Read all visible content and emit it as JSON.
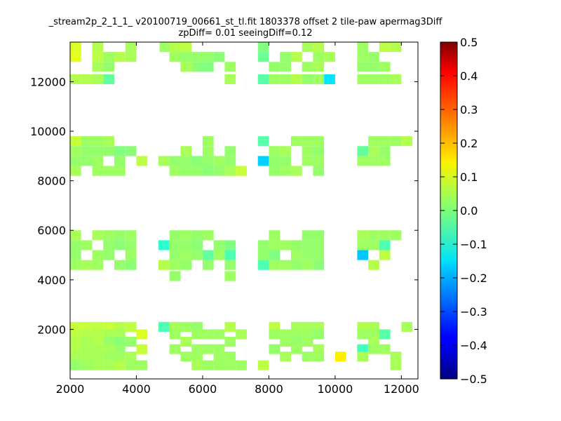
{
  "chart_data": {
    "type": "heatmap",
    "title": "_stream2p_2_1_1_ v20100719_00661_st_tl.fit 1803378 offset 2 tile-paw apermag3Diff",
    "subtitle": "zpDiff= 0.01 seeingDiff=0.12",
    "xlabel": "",
    "ylabel": "",
    "xlim": [
      2000,
      12500
    ],
    "ylim": [
      0,
      13600
    ],
    "x_ticks": [
      2000,
      4000,
      6000,
      8000,
      10000,
      12000
    ],
    "y_ticks": [
      2000,
      4000,
      6000,
      8000,
      10000,
      12000
    ],
    "x_tick_labels": [
      "2000",
      "4000",
      "6000",
      "8000",
      "10000",
      "12000"
    ],
    "y_tick_labels": [
      "2000",
      "4000",
      "6000",
      "8000",
      "10000",
      "12000"
    ],
    "colorbar": {
      "range": [
        -0.5,
        0.5
      ],
      "ticks": [
        0.5,
        0.4,
        0.3,
        0.2,
        0.1,
        0.0,
        -0.1,
        -0.2,
        -0.3,
        -0.4,
        -0.5
      ],
      "tick_labels": [
        "0.5",
        "0.4",
        "0.3",
        "0.2",
        "0.1",
        "0.0",
        "−0.1",
        "−0.2",
        "−0.3",
        "−0.4",
        "−0.5"
      ],
      "colormap": "jet"
    },
    "grid": false,
    "cell_width": 333,
    "cell_height": 400,
    "cells": [
      [
        2000,
        13200,
        0.09
      ],
      [
        2000,
        12800,
        0.1
      ],
      [
        2000,
        11900,
        0.05
      ],
      [
        2333,
        11900,
        0.05
      ],
      [
        2667,
        13200,
        0.05
      ],
      [
        2667,
        12800,
        0.06
      ],
      [
        2667,
        12400,
        0.04
      ],
      [
        2667,
        11900,
        0.04
      ],
      [
        3000,
        12800,
        0.03
      ],
      [
        3000,
        12400,
        0.02
      ],
      [
        3000,
        11900,
        -0.03
      ],
      [
        3333,
        12800,
        0.05
      ],
      [
        3667,
        13200,
        0.04
      ],
      [
        3667,
        12800,
        0.04
      ],
      [
        4700,
        13200,
        0.03
      ],
      [
        5000,
        13200,
        0.05
      ],
      [
        5000,
        12800,
        0.03
      ],
      [
        5333,
        13200,
        0.06
      ],
      [
        5333,
        12800,
        0.02
      ],
      [
        5333,
        12400,
        0.04
      ],
      [
        5667,
        12800,
        0.02
      ],
      [
        5667,
        12400,
        0.01
      ],
      [
        6000,
        12800,
        0.02
      ],
      [
        6000,
        12400,
        0.0
      ],
      [
        6333,
        12800,
        0.01
      ],
      [
        6667,
        12400,
        0.03
      ],
      [
        6667,
        11900,
        0.04
      ],
      [
        7667,
        13200,
        0.0
      ],
      [
        7667,
        12800,
        -0.02
      ],
      [
        7667,
        11900,
        -0.04
      ],
      [
        8000,
        12400,
        0.02
      ],
      [
        8000,
        11900,
        0.03
      ],
      [
        8333,
        12800,
        0.02
      ],
      [
        8333,
        12400,
        0.02
      ],
      [
        8333,
        11900,
        0.03
      ],
      [
        8667,
        12800,
        0.05
      ],
      [
        8667,
        11900,
        0.05
      ],
      [
        9000,
        13200,
        0.04
      ],
      [
        9000,
        12400,
        0.03
      ],
      [
        9000,
        11900,
        0.02
      ],
      [
        9333,
        13200,
        0.05
      ],
      [
        9333,
        12800,
        0.03
      ],
      [
        9333,
        12400,
        0.04
      ],
      [
        9333,
        11900,
        0.03
      ],
      [
        9667,
        12800,
        0.04
      ],
      [
        9667,
        11900,
        -0.15
      ],
      [
        10667,
        13200,
        0.03
      ],
      [
        10667,
        12800,
        0.03
      ],
      [
        10667,
        12400,
        0.02
      ],
      [
        10667,
        11900,
        0.03
      ],
      [
        11000,
        12800,
        0.02
      ],
      [
        11000,
        12400,
        0.02
      ],
      [
        11000,
        11900,
        0.03
      ],
      [
        11333,
        13200,
        0.06
      ],
      [
        11333,
        12400,
        0.03
      ],
      [
        11333,
        11900,
        0.03
      ],
      [
        11667,
        13200,
        0.05
      ],
      [
        11667,
        11900,
        0.04
      ],
      [
        2000,
        9400,
        0.07
      ],
      [
        2000,
        9000,
        0.03
      ],
      [
        2000,
        8600,
        0.02
      ],
      [
        2000,
        8200,
        0.04
      ],
      [
        2333,
        9400,
        0.03
      ],
      [
        2333,
        9000,
        0.02
      ],
      [
        2333,
        8600,
        0.02
      ],
      [
        2667,
        9400,
        0.03
      ],
      [
        2667,
        9000,
        0.02
      ],
      [
        2667,
        8600,
        0.03
      ],
      [
        2667,
        8200,
        0.03
      ],
      [
        3000,
        9400,
        0.04
      ],
      [
        3000,
        9000,
        0.02
      ],
      [
        3000,
        8200,
        0.03
      ],
      [
        3333,
        9000,
        0.0
      ],
      [
        3333,
        8600,
        0.02
      ],
      [
        3333,
        8200,
        0.03
      ],
      [
        3667,
        9000,
        0.01
      ],
      [
        4000,
        8600,
        0.06
      ],
      [
        4667,
        8600,
        0.04
      ],
      [
        5000,
        8600,
        0.02
      ],
      [
        5000,
        8200,
        0.03
      ],
      [
        5333,
        9000,
        0.04
      ],
      [
        5333,
        8600,
        0.02
      ],
      [
        5333,
        8200,
        0.02
      ],
      [
        5667,
        8600,
        0.01
      ],
      [
        5667,
        8200,
        0.02
      ],
      [
        6000,
        9400,
        0.03
      ],
      [
        6000,
        9000,
        0.03
      ],
      [
        6000,
        8600,
        0.02
      ],
      [
        6000,
        8200,
        0.01
      ],
      [
        6333,
        8600,
        0.03
      ],
      [
        6333,
        8200,
        0.02
      ],
      [
        6667,
        9000,
        0.02
      ],
      [
        6667,
        8600,
        0.02
      ],
      [
        6667,
        8200,
        0.04
      ],
      [
        7000,
        8200,
        0.07
      ],
      [
        7667,
        9400,
        -0.04
      ],
      [
        7667,
        8600,
        -0.17
      ],
      [
        8000,
        9000,
        0.03
      ],
      [
        8000,
        8600,
        0.02
      ],
      [
        8000,
        8200,
        0.02
      ],
      [
        8333,
        9000,
        0.04
      ],
      [
        8333,
        8600,
        0.02
      ],
      [
        8333,
        8200,
        0.03
      ],
      [
        8667,
        9400,
        0.03
      ],
      [
        8667,
        8200,
        0.04
      ],
      [
        9000,
        9400,
        0.03
      ],
      [
        9000,
        9000,
        0.03
      ],
      [
        9000,
        8600,
        0.03
      ],
      [
        9333,
        9400,
        0.03
      ],
      [
        9333,
        9000,
        0.02
      ],
      [
        9333,
        8600,
        0.03
      ],
      [
        9333,
        8200,
        0.02
      ],
      [
        10667,
        9000,
        -0.03
      ],
      [
        10667,
        8600,
        0.03
      ],
      [
        11000,
        9400,
        0.03
      ],
      [
        11000,
        9000,
        0.04
      ],
      [
        11000,
        8600,
        0.03
      ],
      [
        11333,
        9400,
        0.03
      ],
      [
        11333,
        9000,
        0.02
      ],
      [
        11333,
        8600,
        0.03
      ],
      [
        11667,
        9400,
        0.03
      ],
      [
        12000,
        9400,
        0.05
      ],
      [
        2000,
        5600,
        0.04
      ],
      [
        2000,
        5200,
        0.02
      ],
      [
        2000,
        4800,
        0.02
      ],
      [
        2000,
        4400,
        0.03
      ],
      [
        2333,
        5200,
        0.03
      ],
      [
        2333,
        4400,
        0.04
      ],
      [
        2667,
        5600,
        0.04
      ],
      [
        2667,
        4800,
        0.03
      ],
      [
        2667,
        4400,
        0.03
      ],
      [
        3000,
        5600,
        0.03
      ],
      [
        3000,
        5200,
        0.02
      ],
      [
        3000,
        4800,
        0.02
      ],
      [
        3333,
        5600,
        0.02
      ],
      [
        3333,
        5200,
        0.01
      ],
      [
        3333,
        4400,
        0.02
      ],
      [
        3667,
        5600,
        0.03
      ],
      [
        3667,
        5200,
        0.02
      ],
      [
        3667,
        4800,
        0.03
      ],
      [
        3667,
        4400,
        0.01
      ],
      [
        4667,
        5200,
        -0.08
      ],
      [
        4667,
        4400,
        0.05
      ],
      [
        5000,
        5600,
        0.02
      ],
      [
        5000,
        5200,
        0.02
      ],
      [
        5000,
        4800,
        0.02
      ],
      [
        5000,
        4400,
        0.03
      ],
      [
        5000,
        3950,
        0.02
      ],
      [
        5333,
        5600,
        0.03
      ],
      [
        5333,
        5200,
        0.02
      ],
      [
        5333,
        4800,
        0.03
      ],
      [
        5333,
        4400,
        0.02
      ],
      [
        5667,
        5600,
        0.02
      ],
      [
        5667,
        5200,
        0.01
      ],
      [
        5667,
        4800,
        0.02
      ],
      [
        6000,
        5600,
        0.03
      ],
      [
        6000,
        4800,
        -0.03
      ],
      [
        6000,
        4400,
        0.02
      ],
      [
        6333,
        5200,
        0.02
      ],
      [
        6333,
        4800,
        0.03
      ],
      [
        6667,
        5200,
        0.0
      ],
      [
        6667,
        4800,
        -0.05
      ],
      [
        6667,
        4400,
        0.02
      ],
      [
        6667,
        3950,
        0.03
      ],
      [
        7667,
        5200,
        0.02
      ],
      [
        7667,
        4800,
        0.02
      ],
      [
        7667,
        4400,
        -0.05
      ],
      [
        8000,
        5600,
        0.03
      ],
      [
        8000,
        5200,
        0.03
      ],
      [
        8000,
        4800,
        0.0
      ],
      [
        8000,
        4400,
        0.03
      ],
      [
        8333,
        5200,
        0.03
      ],
      [
        8333,
        4400,
        0.03
      ],
      [
        8667,
        5200,
        0.02
      ],
      [
        8667,
        4800,
        0.03
      ],
      [
        8667,
        4400,
        0.02
      ],
      [
        9000,
        5600,
        0.02
      ],
      [
        9000,
        5200,
        0.02
      ],
      [
        9000,
        4800,
        0.02
      ],
      [
        9000,
        4400,
        0.03
      ],
      [
        9333,
        5600,
        0.02
      ],
      [
        9333,
        5200,
        0.02
      ],
      [
        9333,
        4800,
        0.02
      ],
      [
        9333,
        4400,
        0.01
      ],
      [
        10667,
        5600,
        0.04
      ],
      [
        10667,
        5200,
        0.03
      ],
      [
        10667,
        4800,
        -0.18
      ],
      [
        11000,
        5600,
        0.03
      ],
      [
        11000,
        5200,
        0.03
      ],
      [
        11000,
        4400,
        0.05
      ],
      [
        11333,
        5600,
        0.03
      ],
      [
        11333,
        5200,
        -0.05
      ],
      [
        11667,
        5600,
        0.03
      ],
      [
        11333,
        4800,
        0.06
      ],
      [
        2000,
        1900,
        0.07
      ],
      [
        2000,
        1600,
        0.06
      ],
      [
        2000,
        1300,
        0.05
      ],
      [
        2000,
        1000,
        0.05
      ],
      [
        2000,
        700,
        0.04
      ],
      [
        2000,
        350,
        0.02
      ],
      [
        2333,
        1900,
        0.07
      ],
      [
        2333,
        1600,
        0.05
      ],
      [
        2333,
        1300,
        0.04
      ],
      [
        2333,
        1000,
        0.04
      ],
      [
        2333,
        700,
        0.04
      ],
      [
        2333,
        350,
        0.03
      ],
      [
        2667,
        1900,
        0.06
      ],
      [
        2667,
        1600,
        0.05
      ],
      [
        2667,
        1300,
        0.05
      ],
      [
        2667,
        1000,
        0.04
      ],
      [
        2667,
        700,
        0.04
      ],
      [
        2667,
        350,
        0.04
      ],
      [
        3000,
        1900,
        0.07
      ],
      [
        3000,
        1600,
        0.04
      ],
      [
        3000,
        1300,
        0.02
      ],
      [
        3000,
        1000,
        0.04
      ],
      [
        3000,
        700,
        0.03
      ],
      [
        3000,
        350,
        0.04
      ],
      [
        3333,
        1900,
        0.05
      ],
      [
        3333,
        1600,
        0.04
      ],
      [
        3333,
        1300,
        0.01
      ],
      [
        3333,
        1000,
        0.02
      ],
      [
        3333,
        700,
        0.03
      ],
      [
        3333,
        350,
        0.05
      ],
      [
        3667,
        1900,
        0.06
      ],
      [
        3667,
        1300,
        0.02
      ],
      [
        3667,
        700,
        0.04
      ],
      [
        3667,
        350,
        0.03
      ],
      [
        4000,
        1600,
        0.09
      ],
      [
        4000,
        1000,
        0.07
      ],
      [
        4000,
        350,
        0.03
      ],
      [
        4667,
        1900,
        -0.05
      ],
      [
        5000,
        1900,
        0.04
      ],
      [
        5000,
        1600,
        0.03
      ],
      [
        5000,
        1000,
        0.03
      ],
      [
        5333,
        1900,
        0.03
      ],
      [
        5333,
        1300,
        0.04
      ],
      [
        5333,
        700,
        0.03
      ],
      [
        5667,
        1900,
        0.02
      ],
      [
        5667,
        1600,
        0.03
      ],
      [
        5667,
        1000,
        0.03
      ],
      [
        5667,
        700,
        0.03
      ],
      [
        5667,
        350,
        0.04
      ],
      [
        6000,
        1600,
        0.03
      ],
      [
        6000,
        1000,
        0.03
      ],
      [
        6000,
        350,
        0.03
      ],
      [
        6333,
        1600,
        0.03
      ],
      [
        6333,
        1000,
        0.03
      ],
      [
        6333,
        700,
        0.03
      ],
      [
        6333,
        350,
        0.03
      ],
      [
        6667,
        1900,
        0.05
      ],
      [
        6667,
        1300,
        0.03
      ],
      [
        6667,
        700,
        0.03
      ],
      [
        6667,
        350,
        0.03
      ],
      [
        7000,
        1600,
        0.04
      ],
      [
        7000,
        350,
        0.03
      ],
      [
        7667,
        350,
        0.06
      ],
      [
        8000,
        1900,
        0.06
      ],
      [
        8000,
        1600,
        0.03
      ],
      [
        8000,
        1000,
        0.02
      ],
      [
        8333,
        1600,
        0.03
      ],
      [
        8333,
        1300,
        0.03
      ],
      [
        8333,
        700,
        0.04
      ],
      [
        8667,
        1900,
        0.04
      ],
      [
        8667,
        1600,
        0.03
      ],
      [
        8667,
        1300,
        0.02
      ],
      [
        8667,
        1000,
        0.03
      ],
      [
        9000,
        1900,
        0.04
      ],
      [
        9000,
        1600,
        0.03
      ],
      [
        9000,
        1300,
        0.03
      ],
      [
        9000,
        700,
        0.03
      ],
      [
        9333,
        1900,
        0.04
      ],
      [
        9333,
        1600,
        0.02
      ],
      [
        9333,
        1000,
        0.04
      ],
      [
        9333,
        700,
        0.03
      ],
      [
        10000,
        700,
        0.14
      ],
      [
        10667,
        1900,
        0.05
      ],
      [
        10667,
        1600,
        0.03
      ],
      [
        10667,
        1000,
        -0.06
      ],
      [
        10667,
        700,
        0.04
      ],
      [
        11000,
        1900,
        0.04
      ],
      [
        11000,
        1600,
        0.03
      ],
      [
        11000,
        1300,
        0.04
      ],
      [
        11000,
        1000,
        0.03
      ],
      [
        11333,
        1600,
        -0.04
      ],
      [
        11333,
        1000,
        0.03
      ],
      [
        11667,
        700,
        0.04
      ],
      [
        11667,
        350,
        0.04
      ],
      [
        12000,
        1900,
        0.04
      ]
    ]
  }
}
